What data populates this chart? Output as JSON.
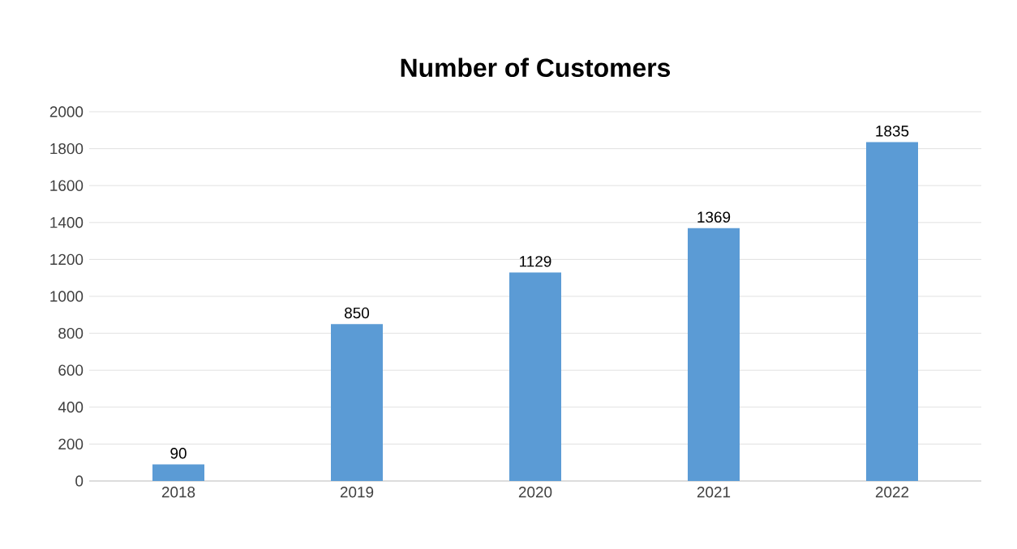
{
  "chart_data": {
    "type": "bar",
    "title": "Number of Customers",
    "categories": [
      "2018",
      "2019",
      "2020",
      "2021",
      "2022"
    ],
    "values": [
      90,
      850,
      1129,
      1369,
      1835
    ],
    "color": "#5b9bd5",
    "ylim": [
      0,
      2000
    ],
    "yticks": [
      0,
      200,
      400,
      600,
      800,
      1000,
      1200,
      1400,
      1600,
      1800,
      2000
    ],
    "grid": "y",
    "data_labels": true
  }
}
